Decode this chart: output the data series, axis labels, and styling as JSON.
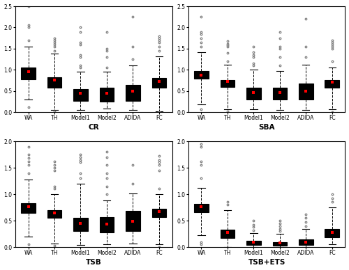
{
  "panels": [
    "CR",
    "SBA",
    "TSB",
    "TSB+ETS"
  ],
  "categories": [
    "WA",
    "TH",
    "Model1",
    "Model2",
    "ADIDA",
    "FC"
  ],
  "panel_data": {
    "CR": {
      "boxes": [
        {
          "q1": 0.78,
          "median": 0.93,
          "q3": 1.05,
          "whislo": 0.3,
          "whishi": 1.55,
          "mean": 0.95,
          "fliers_low": [
            0.12
          ],
          "fliers_high": [
            1.7,
            2.0,
            2.05,
            2.5
          ]
        },
        {
          "q1": 0.58,
          "median": 0.7,
          "q3": 0.82,
          "whislo": 0.05,
          "whishi": 1.38,
          "mean": 0.75,
          "fliers_low": [
            0.02
          ],
          "fliers_high": [
            1.45,
            1.55,
            1.6,
            1.65,
            1.7,
            1.75
          ]
        },
        {
          "q1": 0.27,
          "median": 0.38,
          "q3": 0.55,
          "whislo": 0.05,
          "whishi": 0.95,
          "mean": 0.45,
          "fliers_low": [],
          "fliers_high": [
            1.05,
            1.1,
            1.3,
            1.35,
            1.6,
            1.65,
            1.9,
            2.0
          ]
        },
        {
          "q1": 0.25,
          "median": 0.35,
          "q3": 0.57,
          "whislo": 0.08,
          "whishi": 0.95,
          "mean": 0.44,
          "fliers_low": [],
          "fliers_high": [
            1.05,
            1.3,
            1.45,
            1.5,
            1.9
          ]
        },
        {
          "q1": 0.27,
          "median": 0.38,
          "q3": 0.65,
          "whislo": 0.05,
          "whishi": 1.1,
          "mean": 0.49,
          "fliers_low": [],
          "fliers_high": [
            1.25,
            1.55,
            2.25
          ]
        },
        {
          "q1": 0.57,
          "median": 0.7,
          "q3": 0.8,
          "whislo": 0.02,
          "whishi": 1.32,
          "mean": 0.73,
          "fliers_low": [
            0.0
          ],
          "fliers_high": [
            1.45,
            1.55,
            1.65,
            1.7,
            1.75,
            1.8
          ]
        }
      ],
      "ylim": [
        0.0,
        2.5
      ],
      "yticks": [
        0.0,
        0.5,
        1.0,
        1.5,
        2.0,
        2.5
      ]
    },
    "SBA": {
      "boxes": [
        {
          "q1": 0.79,
          "median": 0.87,
          "q3": 0.98,
          "whislo": 0.18,
          "whishi": 1.42,
          "mean": 0.88,
          "fliers_low": [
            0.06
          ],
          "fliers_high": [
            1.55,
            1.65,
            1.75,
            1.85,
            1.9,
            2.25
          ]
        },
        {
          "q1": 0.6,
          "median": 0.67,
          "q3": 0.75,
          "whislo": 0.07,
          "whishi": 1.12,
          "mean": 0.72,
          "fliers_low": [
            0.02
          ],
          "fliers_high": [
            1.2,
            1.4,
            1.55,
            1.58,
            1.62,
            1.68
          ]
        },
        {
          "q1": 0.3,
          "median": 0.38,
          "q3": 0.57,
          "whislo": 0.07,
          "whishi": 1.0,
          "mean": 0.46,
          "fliers_low": [],
          "fliers_high": [
            1.1,
            1.15,
            1.3,
            1.35,
            1.42,
            1.55
          ]
        },
        {
          "q1": 0.3,
          "median": 0.39,
          "q3": 0.58,
          "whislo": 0.05,
          "whishi": 0.98,
          "mean": 0.47,
          "fliers_low": [],
          "fliers_high": [
            1.1,
            1.3,
            1.5,
            1.55,
            1.75,
            1.9
          ]
        },
        {
          "q1": 0.29,
          "median": 0.42,
          "q3": 0.68,
          "whislo": 0.05,
          "whishi": 1.12,
          "mean": 0.5,
          "fliers_low": [],
          "fliers_high": [
            1.3,
            1.55,
            2.2
          ]
        },
        {
          "q1": 0.58,
          "median": 0.67,
          "q3": 0.75,
          "whislo": 0.07,
          "whishi": 1.05,
          "mean": 0.71,
          "fliers_low": [
            0.0
          ],
          "fliers_high": [
            1.2,
            1.5,
            1.55,
            1.6,
            1.65,
            1.7
          ]
        }
      ],
      "ylim": [
        0.0,
        2.5
      ],
      "yticks": [
        0.0,
        0.5,
        1.0,
        1.5,
        2.0,
        2.5
      ]
    },
    "TSB": {
      "boxes": [
        {
          "q1": 0.65,
          "median": 0.75,
          "q3": 0.83,
          "whislo": 0.2,
          "whishi": 1.28,
          "mean": 0.76,
          "fliers_low": [
            0.05
          ],
          "fliers_high": [
            1.4,
            1.55,
            1.62,
            1.68,
            1.75,
            1.9
          ]
        },
        {
          "q1": 0.55,
          "median": 0.62,
          "q3": 0.7,
          "whislo": 0.07,
          "whishi": 1.0,
          "mean": 0.64,
          "fliers_low": [
            0.03
          ],
          "fliers_high": [
            1.1,
            1.15,
            1.45,
            1.5,
            1.55,
            1.62
          ]
        },
        {
          "q1": 0.3,
          "median": 0.38,
          "q3": 0.55,
          "whislo": 0.04,
          "whishi": 1.2,
          "mean": 0.45,
          "fliers_low": [],
          "fliers_high": [
            1.3,
            1.4,
            1.6,
            1.65,
            1.7,
            1.75
          ]
        },
        {
          "q1": 0.28,
          "median": 0.37,
          "q3": 0.57,
          "whislo": 0.06,
          "whishi": 0.88,
          "mean": 0.44,
          "fliers_low": [],
          "fliers_high": [
            1.0,
            1.15,
            1.3,
            1.4,
            1.55,
            1.7,
            1.8
          ]
        },
        {
          "q1": 0.3,
          "median": 0.42,
          "q3": 0.68,
          "whislo": 0.07,
          "whishi": 1.02,
          "mean": 0.49,
          "fliers_low": [],
          "fliers_high": [
            1.2,
            1.55,
            2.05
          ]
        },
        {
          "q1": 0.57,
          "median": 0.65,
          "q3": 0.72,
          "whislo": 0.06,
          "whishi": 1.0,
          "mean": 0.67,
          "fliers_low": [
            0.0
          ],
          "fliers_high": [
            1.1,
            1.45,
            1.55,
            1.6,
            1.65,
            1.72
          ]
        }
      ],
      "ylim": [
        0.0,
        2.0
      ],
      "yticks": [
        0.0,
        0.5,
        1.0,
        1.5,
        2.0
      ]
    },
    "TSB+ETS": {
      "boxes": [
        {
          "q1": 0.66,
          "median": 0.75,
          "q3": 0.82,
          "whislo": 0.22,
          "whishi": 1.12,
          "mean": 0.77,
          "fliers_low": [
            0.06,
            0.1
          ],
          "fliers_high": [
            1.3,
            1.55,
            1.62,
            1.9,
            1.95
          ]
        },
        {
          "q1": 0.17,
          "median": 0.23,
          "q3": 0.33,
          "whislo": 0.0,
          "whishi": 0.7,
          "mean": 0.28,
          "fliers_low": [],
          "fliers_high": [
            0.8,
            0.85
          ]
        },
        {
          "q1": 0.04,
          "median": 0.07,
          "q3": 0.12,
          "whislo": 0.0,
          "whishi": 0.27,
          "mean": 0.1,
          "fliers_low": [],
          "fliers_high": [
            0.32,
            0.38,
            0.42,
            0.5
          ]
        },
        {
          "q1": 0.03,
          "median": 0.06,
          "q3": 0.1,
          "whislo": 0.0,
          "whishi": 0.25,
          "mean": 0.08,
          "fliers_low": [],
          "fliers_high": [
            0.3,
            0.35,
            0.4,
            0.45,
            0.5
          ]
        },
        {
          "q1": 0.04,
          "median": 0.08,
          "q3": 0.15,
          "whislo": 0.0,
          "whishi": 0.35,
          "mean": 0.1,
          "fliers_low": [],
          "fliers_high": [
            0.4,
            0.48,
            0.55,
            0.62
          ]
        },
        {
          "q1": 0.18,
          "median": 0.25,
          "q3": 0.35,
          "whislo": 0.05,
          "whishi": 0.75,
          "mean": 0.28,
          "fliers_low": [],
          "fliers_high": [
            0.85,
            0.92,
            1.0
          ]
        }
      ],
      "ylim": [
        0.0,
        2.0
      ],
      "yticks": [
        0.0,
        0.5,
        1.0,
        1.5,
        2.0
      ]
    }
  },
  "box_color": "#d3d3d3",
  "median_color": "#000000",
  "mean_color": "#ff0000",
  "whisker_color": "#000000",
  "flier_color": "#888888",
  "background_color": "#ffffff"
}
